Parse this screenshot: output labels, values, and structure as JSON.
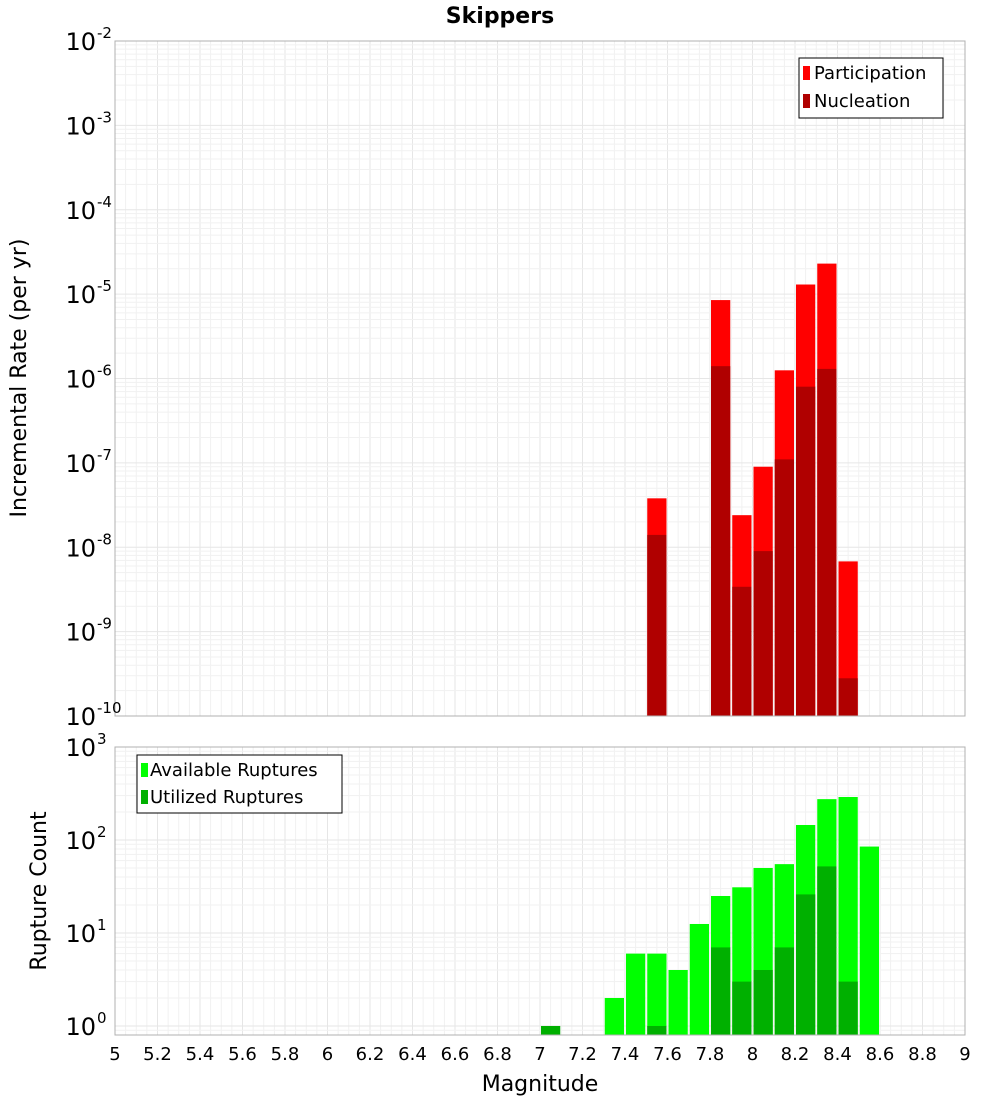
{
  "figure": {
    "title": "Skippers"
  },
  "chart_data": [
    {
      "type": "bar",
      "scale": "log",
      "ylabel": "Incremental Rate (per yr)",
      "xlabel": "",
      "xlim": [
        5,
        9
      ],
      "ylim": [
        1e-10,
        0.01
      ],
      "grid": true,
      "legend_position": "top-right",
      "bar_width": 0.1,
      "series": [
        {
          "name": "Participation",
          "color": "#ff0000",
          "x": [
            7.55,
            7.85,
            7.95,
            8.05,
            8.15,
            8.25,
            8.35,
            8.45
          ],
          "values": [
            3.8e-08,
            8.5e-06,
            2.4e-08,
            9e-08,
            1.25e-06,
            1.3e-05,
            2.3e-05,
            6.8e-09
          ]
        },
        {
          "name": "Nucleation",
          "color": "#b00000",
          "x": [
            7.55,
            7.85,
            7.95,
            8.05,
            8.15,
            8.25,
            8.35,
            8.45
          ],
          "values": [
            1.4e-08,
            1.4e-06,
            3.4e-09,
            9e-09,
            1.1e-07,
            8e-07,
            1.3e-06,
            2.8e-10
          ]
        }
      ],
      "ytick_labels": [
        {
          "value": 1e-10,
          "base": "10",
          "exp": "-10"
        },
        {
          "value": 1e-09,
          "base": "10",
          "exp": "-9"
        },
        {
          "value": 1e-08,
          "base": "10",
          "exp": "-8"
        },
        {
          "value": 1e-07,
          "base": "10",
          "exp": "-7"
        },
        {
          "value": 1e-06,
          "base": "10",
          "exp": "-6"
        },
        {
          "value": 1e-05,
          "base": "10",
          "exp": "-5"
        },
        {
          "value": 0.0001,
          "base": "10",
          "exp": "-4"
        },
        {
          "value": 0.001,
          "base": "10",
          "exp": "-3"
        },
        {
          "value": 0.01,
          "base": "10",
          "exp": "-2"
        }
      ]
    },
    {
      "type": "bar",
      "scale": "log",
      "ylabel": "Rupture Count",
      "xlabel": "Magnitude",
      "xlim": [
        5,
        9
      ],
      "ylim": [
        0.8,
        1000
      ],
      "grid": true,
      "legend_position": "top-left",
      "bar_width": 0.1,
      "series": [
        {
          "name": "Available Ruptures",
          "color": "#00ff00",
          "x": [
            7.35,
            7.45,
            7.55,
            7.65,
            7.75,
            7.85,
            7.95,
            8.05,
            8.15,
            8.25,
            8.35,
            8.45,
            8.55
          ],
          "values": [
            2,
            6,
            6,
            4,
            12.5,
            25,
            31,
            50,
            55,
            145,
            275,
            290,
            85
          ]
        },
        {
          "name": "Utilized Ruptures",
          "color": "#00b000",
          "x": [
            7.05,
            7.55,
            7.85,
            7.95,
            8.05,
            8.15,
            8.25,
            8.35,
            8.45
          ],
          "values": [
            1,
            1,
            7,
            3,
            4,
            7,
            26,
            52,
            3
          ]
        }
      ],
      "ytick_labels": [
        {
          "value": 1,
          "base": "10",
          "exp": "0"
        },
        {
          "value": 10,
          "base": "10",
          "exp": "1"
        },
        {
          "value": 100,
          "base": "10",
          "exp": "2"
        },
        {
          "value": 1000,
          "base": "10",
          "exp": "3"
        }
      ],
      "xtick_labels": [
        "5",
        "5.2",
        "5.4",
        "5.6",
        "5.8",
        "6",
        "6.2",
        "6.4",
        "6.6",
        "6.8",
        "7",
        "7.2",
        "7.4",
        "7.6",
        "7.8",
        "8",
        "8.2",
        "8.4",
        "8.6",
        "8.8",
        "9"
      ]
    }
  ]
}
